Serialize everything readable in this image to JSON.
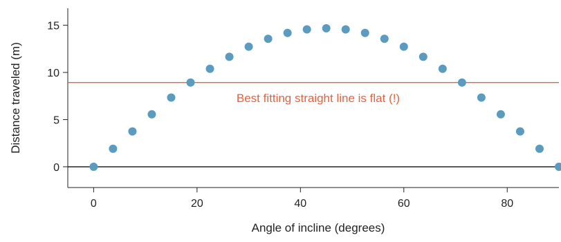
{
  "chart_data": {
    "type": "scatter",
    "xlabel": "Angle of incline (degrees)",
    "ylabel": "Distance traveled (m)",
    "xlim": [
      -5,
      90
    ],
    "ylim": [
      -2.2,
      16.8
    ],
    "x_ticks": [
      0,
      20,
      40,
      60,
      80
    ],
    "y_ticks": [
      0,
      5,
      10,
      15
    ],
    "x_tick_labels": [
      "0",
      "20",
      "40",
      "60",
      "80"
    ],
    "y_tick_labels": [
      "0",
      "5",
      "10",
      "15"
    ],
    "grid": false,
    "zero_line": 0,
    "series": [
      {
        "x": [
          0,
          3.75,
          7.5,
          11.25,
          15,
          18.75,
          22.5,
          26.25,
          30,
          33.75,
          37.5,
          41.25,
          45,
          48.75,
          52.5,
          56.25,
          60,
          63.75,
          67.5,
          71.25,
          75,
          78.75,
          82.5,
          86.25,
          90
        ],
        "y": [
          0,
          1.91,
          3.75,
          5.56,
          7.34,
          8.93,
          10.39,
          11.66,
          12.73,
          13.57,
          14.19,
          14.56,
          14.68,
          14.56,
          14.19,
          13.57,
          12.73,
          11.66,
          10.39,
          8.93,
          7.34,
          5.56,
          3.75,
          1.91,
          0
        ],
        "color": "#5b9bbd"
      }
    ],
    "fit_line": {
      "y": 8.93,
      "color": "#e8603c",
      "label": "Best fitting straight line is flat (!)"
    }
  }
}
